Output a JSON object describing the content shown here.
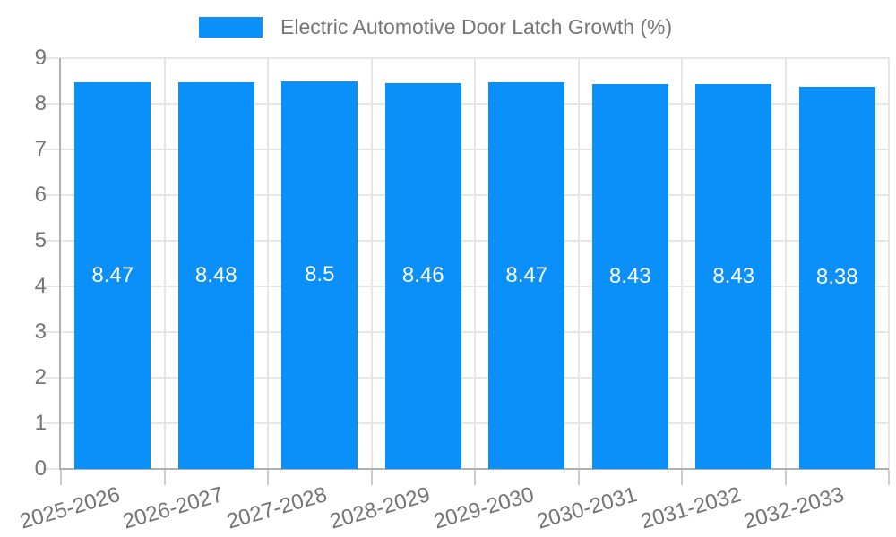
{
  "chart_data": {
    "type": "bar",
    "title": "Electric Automotive Door Latch Growth (%)",
    "categories": [
      "2025-2026",
      "2026-2027",
      "2027-2028",
      "2028-2029",
      "2029-2030",
      "2030-2031",
      "2031-2032",
      "2032-2033"
    ],
    "values": [
      8.47,
      8.48,
      8.5,
      8.46,
      8.47,
      8.43,
      8.43,
      8.38
    ],
    "bar_labels": [
      "8.47",
      "8.48",
      "8.5",
      "8.46",
      "8.47",
      "8.43",
      "8.43",
      "8.38"
    ],
    "xlabel": "",
    "ylabel": "",
    "ylim": [
      0,
      9
    ],
    "yticks": [
      "0",
      "1",
      "2",
      "3",
      "4",
      "5",
      "6",
      "7",
      "8",
      "9"
    ],
    "grid": true,
    "legend_position": "top-center",
    "x_label_rotation_deg": -16,
    "colors": {
      "bar": "#0a90f8",
      "bar_label_text": "#ffffff",
      "axis_text": "#757575",
      "title_text": "#757575",
      "gridline": "#e6e6e6",
      "tick": "#cccccc",
      "axis_line": "#b0b0b0",
      "background": "#ffffff"
    }
  }
}
